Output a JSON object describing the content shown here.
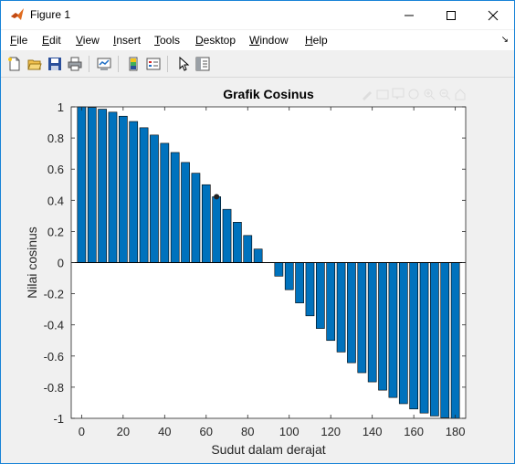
{
  "window": {
    "title": "Figure 1",
    "controls": [
      "minimize",
      "maximize",
      "close"
    ]
  },
  "menu": {
    "items": [
      "File",
      "Edit",
      "View",
      "Insert",
      "Tools",
      "Desktop",
      "Window",
      "Help"
    ]
  },
  "toolbar": {
    "icons": [
      "new-figure-icon",
      "open-icon",
      "save-icon",
      "print-icon",
      "link-plot-icon",
      "colorbar-icon",
      "legend-icon",
      "pointer-icon",
      "property-editor-icon"
    ]
  },
  "colors": {
    "bar_fill": "#0072bd",
    "bar_edge": "#000000",
    "axes_bg": "#ffffff",
    "figure_bg": "#f0f0f0",
    "title_bar_border": "#1883d7"
  },
  "chart_data": {
    "type": "bar",
    "title": "Grafik Cosinus",
    "xlabel": "Sudut dalam derajat",
    "ylabel": "Nilai cosinus",
    "xlim": [
      -5,
      185
    ],
    "ylim": [
      -1,
      1
    ],
    "xticks": [
      "0",
      "20",
      "40",
      "60",
      "80",
      "100",
      "120",
      "140",
      "160",
      "180"
    ],
    "yticks": [
      "-1",
      "-0.8",
      "-0.6",
      "-0.4",
      "-0.2",
      "0",
      "0.2",
      "0.4",
      "0.6",
      "0.8",
      "1"
    ],
    "x": [
      0,
      5,
      10,
      15,
      20,
      25,
      30,
      35,
      40,
      45,
      50,
      55,
      60,
      65,
      70,
      75,
      80,
      85,
      90,
      95,
      100,
      105,
      110,
      115,
      120,
      125,
      130,
      135,
      140,
      145,
      150,
      155,
      160,
      165,
      170,
      175,
      180
    ],
    "values": [
      1.0,
      0.996,
      0.985,
      0.966,
      0.94,
      0.906,
      0.866,
      0.819,
      0.766,
      0.707,
      0.643,
      0.574,
      0.5,
      0.423,
      0.342,
      0.259,
      0.174,
      0.087,
      0.0,
      -0.087,
      -0.174,
      -0.259,
      -0.342,
      -0.423,
      -0.5,
      -0.574,
      -0.643,
      -0.707,
      -0.766,
      -0.819,
      -0.866,
      -0.906,
      -0.94,
      -0.966,
      -0.985,
      -0.996,
      -1.0
    ],
    "grid": false
  }
}
